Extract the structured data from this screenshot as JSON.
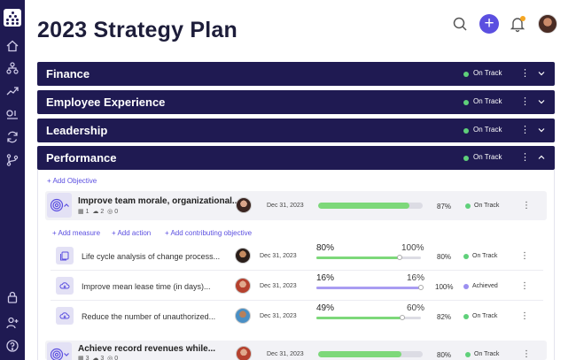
{
  "page": {
    "title": "2023 Strategy Plan"
  },
  "header": {
    "add_glyph": "+"
  },
  "sections": [
    {
      "title": "Finance",
      "status": "On Track",
      "status_color": "#5fd07a"
    },
    {
      "title": "Employee Experience",
      "status": "On Track",
      "status_color": "#5fd07a"
    },
    {
      "title": "Leadership",
      "status": "On Track",
      "status_color": "#5fd07a"
    },
    {
      "title": "Performance",
      "status": "On Track",
      "status_color": "#5fd07a"
    }
  ],
  "performance": {
    "add_objective": "+ Add Objective",
    "objectives": [
      {
        "title": "Improve team morale, organizational...",
        "counts": {
          "a": "1",
          "b": "2",
          "c": "0"
        },
        "date": "Dec 31, 2023",
        "progress_pct": 87,
        "progress_label": "87%",
        "status": "On Track",
        "status_color": "#5fd07a"
      },
      {
        "title": "Achieve record revenues while...",
        "counts": {
          "a": "3",
          "b": "3",
          "c": "0"
        },
        "date": "Dec 31, 2023",
        "progress_pct": 80,
        "progress_label": "80%",
        "status": "On Track",
        "status_color": "#5fd07a"
      }
    ],
    "actions": {
      "add_measure": "+ Add measure",
      "add_action": "+ Add action",
      "add_contributing": "+ Add contributing objective"
    },
    "key_results": [
      {
        "title": "Life cycle analysis of change process...",
        "current": "80%",
        "target": "100%",
        "fill": 0.8,
        "date": "Dec 31, 2023",
        "pct": "80%",
        "status": "On Track",
        "status_color": "#5fd07a",
        "bar_color": "#7dd87a"
      },
      {
        "title": "Improve mean lease time (in days)...",
        "current": "16%",
        "target": "16%",
        "fill": 1.0,
        "date": "Dec 31, 2023",
        "pct": "100%",
        "status": "Achieved",
        "status_color": "#9b8ff0",
        "bar_color": "#a99cf2"
      },
      {
        "title": "Reduce the number of unauthorized...",
        "current": "49%",
        "target": "60%",
        "fill": 0.82,
        "date": "Dec 31, 2023",
        "pct": "82%",
        "status": "On Track",
        "status_color": "#5fd07a",
        "bar_color": "#7dd87a"
      }
    ]
  },
  "colors": {
    "navy": "#1f1a52",
    "accent": "#5b4fe0",
    "on_track": "#5fd07a",
    "achieved": "#9b8ff0"
  }
}
